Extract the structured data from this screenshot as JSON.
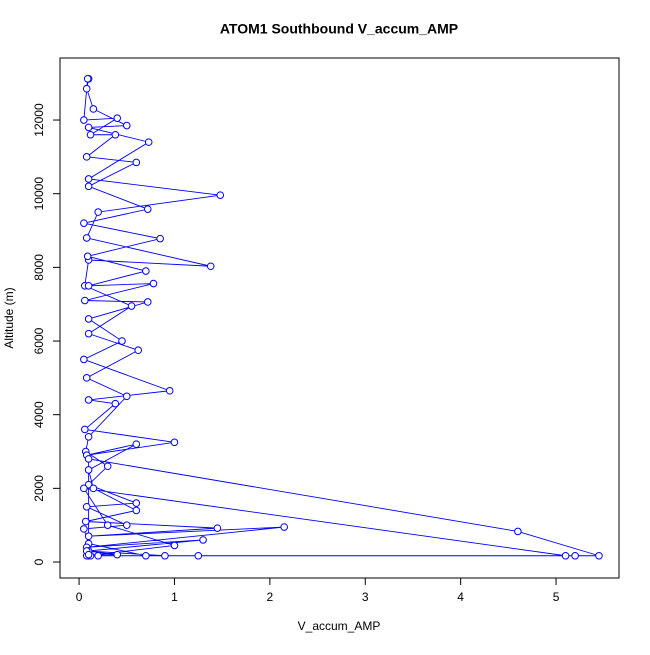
{
  "chart_data": {
    "type": "line",
    "title": "ATOM1 Southbound V_accum_AMP",
    "x_label": "V_accum_AMP",
    "y_label": "Altitude (m)",
    "x": [
      0.1,
      0.2,
      0.7,
      0.1,
      0.05,
      0.5,
      0.08,
      0.6,
      0.1,
      0.3,
      0.07,
      0.1,
      0.5,
      0.08,
      0.62,
      0.1,
      0.55,
      0.06,
      0.1,
      1.38,
      0.08,
      0.2,
      1.48,
      0.1,
      0.73,
      0.1,
      0.5,
      0.15,
      0.08,
      0.1,
      0.09,
      0.05,
      0.4,
      0.12,
      0.38,
      0.08,
      0.6,
      0.1,
      0.72,
      0.05,
      0.85,
      0.09,
      0.7,
      0.1,
      0.78,
      0.06,
      0.72,
      0.1,
      0.45,
      0.05,
      0.95,
      0.1,
      0.38,
      0.06,
      1.0,
      0.08,
      0.6,
      0.1,
      0.15,
      0.6,
      0.07,
      1.45,
      0.1,
      2.15,
      0.08,
      1.3,
      0.1,
      0.1,
      4.6,
      5.45,
      5.2,
      0.12,
      5.1,
      0.05,
      0.3,
      1.0,
      0.08,
      1.25,
      0.9,
      0.08,
      0.4,
      0.1
    ],
    "series": [
      {
        "color": "#0000ff",
        "values": [
          170,
          170,
          170,
          500,
          900,
          1000,
          1500,
          1600,
          2100,
          2600,
          3000,
          3400,
          4500,
          5000,
          5750,
          6200,
          6950,
          7500,
          8200,
          8030,
          8800,
          9500,
          9960,
          10400,
          11400,
          11800,
          11850,
          12300,
          12850,
          13120,
          13120,
          12000,
          12050,
          11600,
          11600,
          11000,
          10850,
          10200,
          9580,
          9200,
          8780,
          8300,
          7900,
          7500,
          7560,
          7100,
          7060,
          6600,
          6000,
          5500,
          4650,
          4400,
          4300,
          3600,
          3250,
          2900,
          3200,
          2500,
          2000,
          1400,
          1100,
          920,
          700,
          950,
          400,
          600,
          300,
          2800,
          830,
          170,
          170,
          170,
          170,
          2000,
          1000,
          450,
          170,
          170,
          170,
          300,
          200,
          200
        ]
      }
    ],
    "xlim": [
      -0.2,
      5.66
    ],
    "ylim": [
      -434,
      13684
    ],
    "xticks": [
      0,
      1,
      2,
      3,
      4,
      5
    ],
    "yticks": [
      0,
      2000,
      4000,
      6000,
      8000,
      10000,
      12000
    ]
  }
}
